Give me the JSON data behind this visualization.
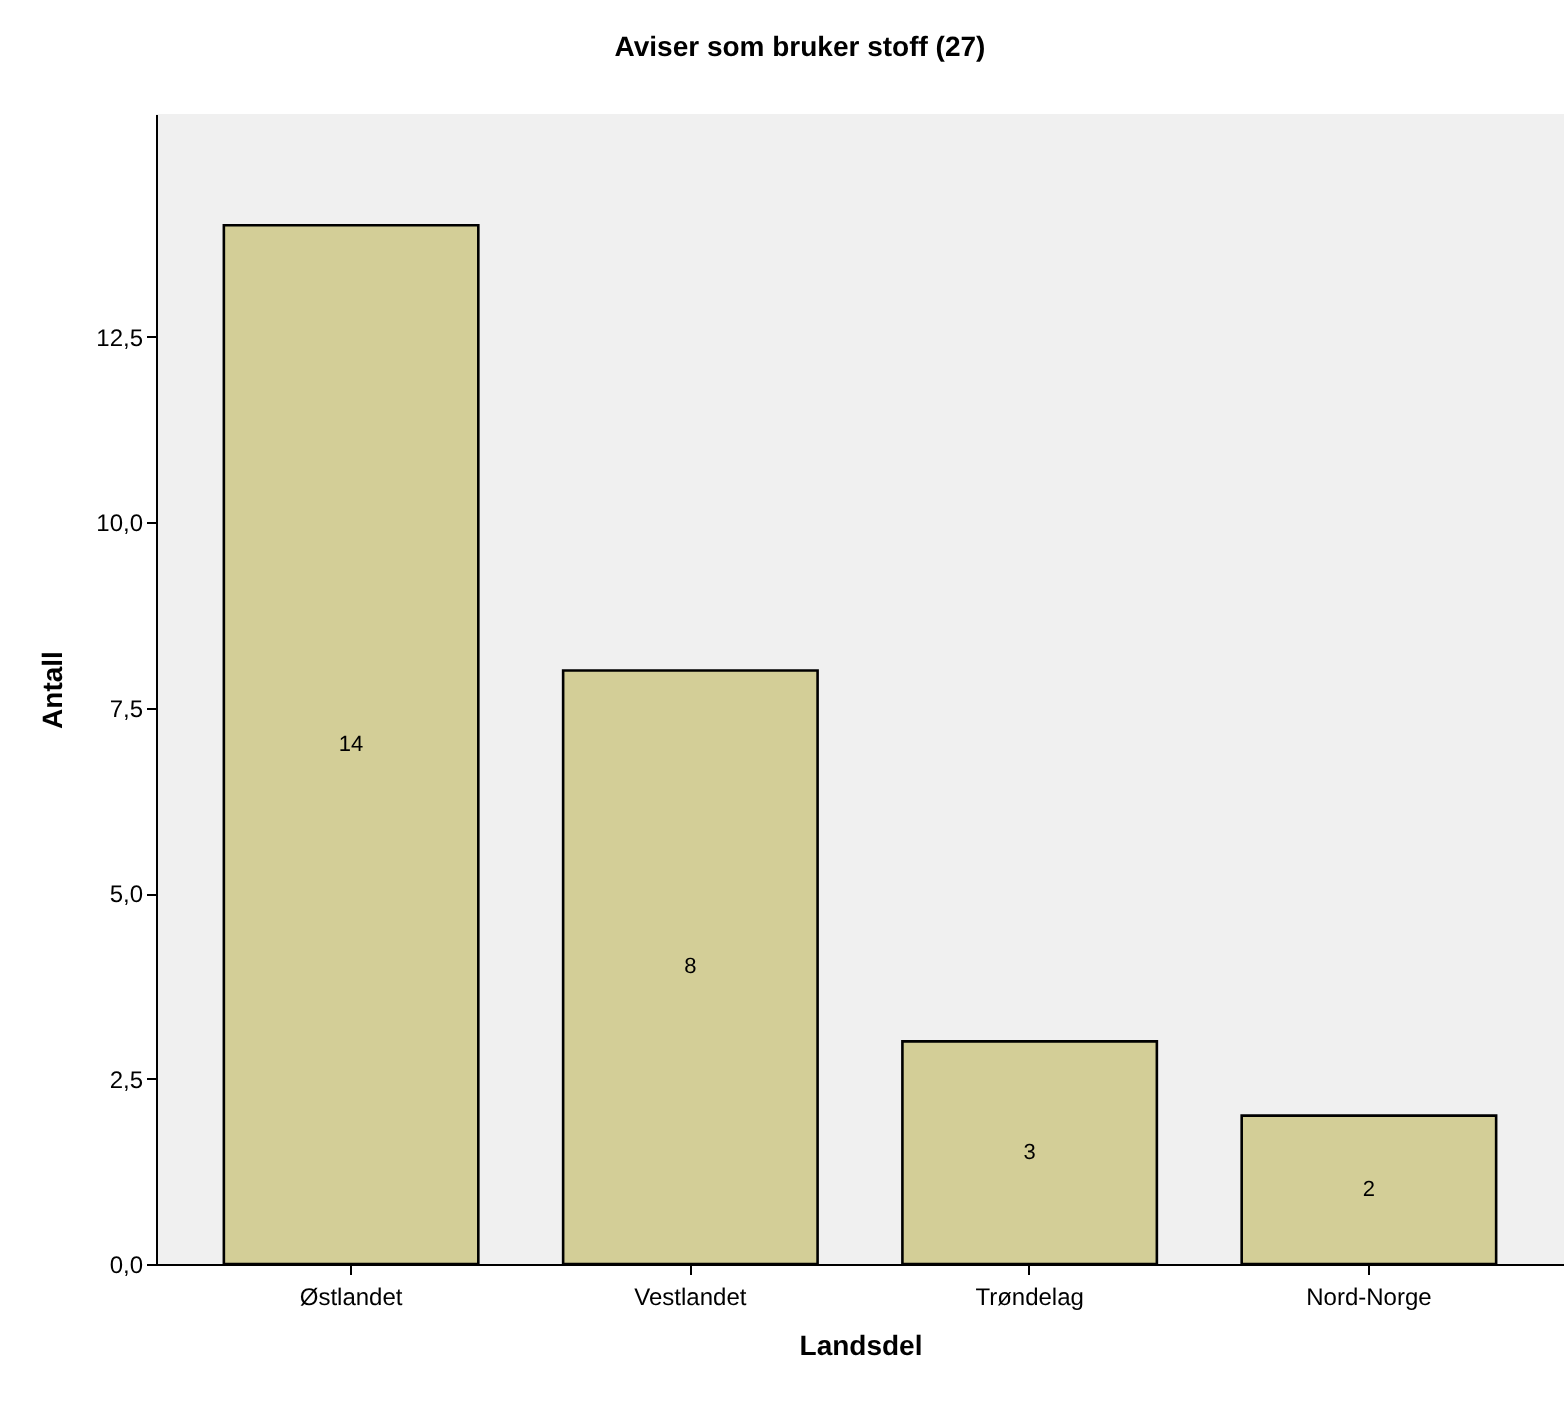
{
  "chart_data": {
    "type": "bar",
    "title": "Aviser som bruker stoff (27)",
    "xlabel": "Landsdel",
    "ylabel": "Antall",
    "categories": [
      "Østlandet",
      "Vestlandet",
      "Trøndelag",
      "Nord-Norge"
    ],
    "values": [
      14,
      8,
      3,
      2
    ],
    "color": "#d3ce97",
    "data_labels": true,
    "grid": false,
    "ylim": [
      0,
      15.5
    ],
    "yticks": [
      {
        "value": 0,
        "label": "0,0"
      },
      {
        "value": 2.5,
        "label": "2,5"
      },
      {
        "value": 5,
        "label": "5,0"
      },
      {
        "value": 7.5,
        "label": "7,5"
      },
      {
        "value": 10,
        "label": "10,0"
      },
      {
        "value": 12.5,
        "label": "12,5"
      }
    ]
  }
}
